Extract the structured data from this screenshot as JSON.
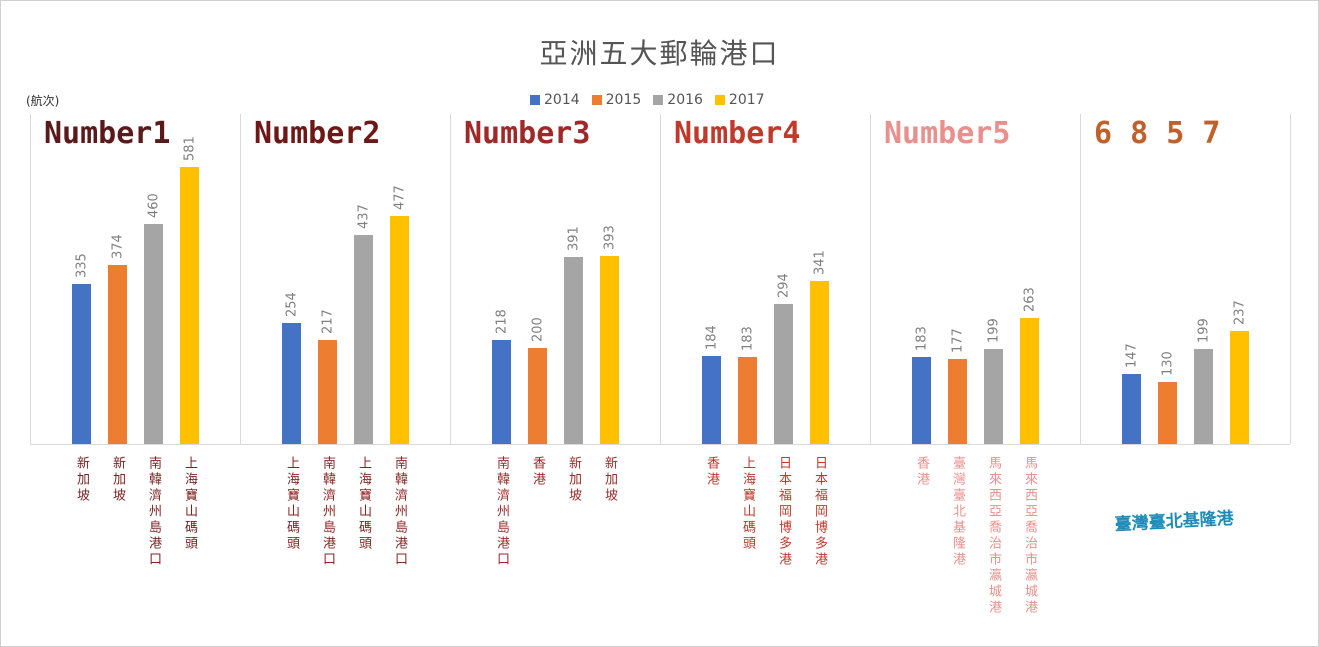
{
  "chart_data": {
    "type": "bar",
    "title": "亞洲五大郵輪港口",
    "ylabel": "(航次)",
    "ylim": [
      0,
      620
    ],
    "series": [
      {
        "name": "2014",
        "color": "#4472c4"
      },
      {
        "name": "2015",
        "color": "#ed7d31"
      },
      {
        "name": "2016",
        "color": "#a5a5a5"
      },
      {
        "name": "2017",
        "color": "#ffc000"
      }
    ],
    "groups": [
      {
        "label": "Number1",
        "label_color": "#5a1a1a",
        "values": [
          335,
          374,
          460,
          581
        ],
        "categories": [
          "新加坡",
          "新加坡",
          "南韓濟州島港口",
          "上海寶山碼頭"
        ],
        "category_color": "#7b2323"
      },
      {
        "label": "Number2",
        "label_color": "#6e1717",
        "values": [
          254,
          217,
          437,
          477
        ],
        "categories": [
          "上海寶山碼頭",
          "南韓濟州島港口",
          "上海寶山碼頭",
          "南韓濟州島港口"
        ],
        "category_color": "#8b2323"
      },
      {
        "label": "Number3",
        "label_color": "#a02828",
        "values": [
          218,
          200,
          391,
          393
        ],
        "categories": [
          "南韓濟州島港口",
          "香港",
          "新加坡",
          "新加坡"
        ],
        "category_color": "#9b2a2a"
      },
      {
        "label": "Number4",
        "label_color": "#c0392b",
        "values": [
          184,
          183,
          294,
          341
        ],
        "categories": [
          "香港",
          "上海寶山碼頭",
          "日本福岡博多港",
          "日本福岡博多港"
        ],
        "category_color": "#c0392b"
      },
      {
        "label": "Number5",
        "label_color": "#e9908c",
        "values": [
          183,
          177,
          199,
          263
        ],
        "categories": [
          "香港",
          "臺灣臺北基隆港",
          "馬來西亞喬治市瀛城港",
          "馬來西亞喬治市瀛城港"
        ],
        "category_color": "#e9908c"
      },
      {
        "label": "6 8 5 7",
        "label_color": "#c0602a",
        "values": [
          147,
          130,
          199,
          237
        ],
        "categories": [
          "",
          "",
          "",
          ""
        ],
        "category_color": "#8b2323"
      }
    ],
    "annotation": "臺灣臺北基隆港",
    "annotation_color": "#1e8bb8",
    "grid": false,
    "legend": "top"
  }
}
